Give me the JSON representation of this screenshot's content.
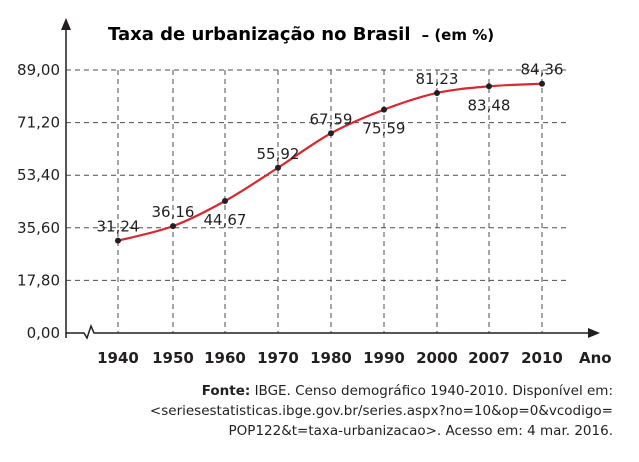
{
  "chart_data": {
    "type": "line",
    "title": "Taxa de urbanização no Brasil",
    "unit_label": "– (em %)",
    "xlabel": "Ano",
    "ylabel": "",
    "categories": [
      "1940",
      "1950",
      "1960",
      "1970",
      "1980",
      "1990",
      "2000",
      "2007",
      "2010"
    ],
    "series": [
      {
        "values": [
          31.24,
          36.16,
          44.67,
          55.92,
          67.59,
          75.59,
          81.23,
          83.48,
          84.36
        ]
      }
    ],
    "data_labels": [
      "31,24",
      "36,16",
      "44,67",
      "55,92",
      "67,59",
      "75,59",
      "81,23",
      "83,48",
      "84,36"
    ],
    "yticks": [
      0,
      17.8,
      35.6,
      53.4,
      71.2,
      89.0
    ],
    "ytick_labels": [
      "0,00",
      "17,80",
      "35,60",
      "53,40",
      "71,20",
      "89,00"
    ],
    "ylim": [
      0,
      89
    ],
    "grid": true,
    "axis_break": true,
    "legend": "none",
    "line_color": "#d7282f",
    "point_color": "#231f20"
  },
  "source": {
    "label": "Fonte:",
    "line1": "IBGE. Censo demográfico 1940-2010. Disponível em:",
    "line2": "<seriesestatisticas.ibge.gov.br/series.aspx?no=10&op=0&vcodigo=",
    "line3": "POP122&t=taxa-urbanizacao>. Acesso em: 4 mar. 2016."
  }
}
